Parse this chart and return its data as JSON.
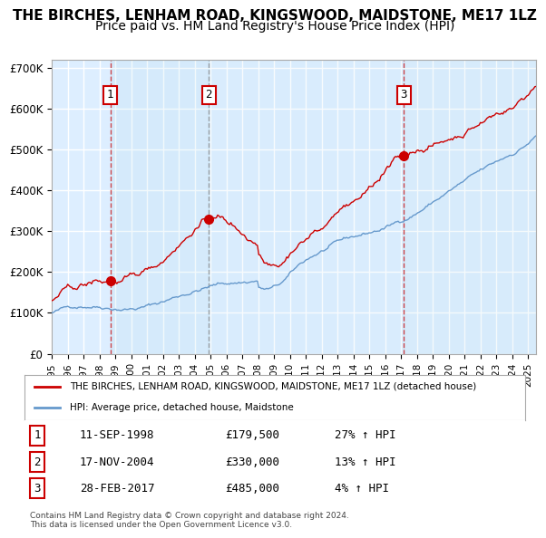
{
  "title": "THE BIRCHES, LENHAM ROAD, KINGSWOOD, MAIDSTONE, ME17 1LZ",
  "subtitle": "Price paid vs. HM Land Registry's House Price Index (HPI)",
  "xlim": [
    1995.0,
    2025.5
  ],
  "ylim": [
    0,
    720000
  ],
  "yticks": [
    0,
    100000,
    200000,
    300000,
    400000,
    500000,
    600000,
    700000
  ],
  "ytick_labels": [
    "£0",
    "£100K",
    "£200K",
    "£300K",
    "£400K",
    "£500K",
    "£600K",
    "£700K"
  ],
  "xtick_years": [
    1995,
    1996,
    1997,
    1998,
    1999,
    2000,
    2001,
    2002,
    2003,
    2004,
    2005,
    2006,
    2007,
    2008,
    2009,
    2010,
    2011,
    2012,
    2013,
    2014,
    2015,
    2016,
    2017,
    2018,
    2019,
    2020,
    2021,
    2022,
    2023,
    2024,
    2025
  ],
  "sale_dates": [
    1998.69,
    2004.88,
    2017.16
  ],
  "sale_prices": [
    179500,
    330000,
    485000
  ],
  "sale_labels": [
    "1",
    "2",
    "3"
  ],
  "sale_date_str": [
    "11-SEP-1998",
    "17-NOV-2004",
    "28-FEB-2017"
  ],
  "sale_price_str": [
    "£179,500",
    "£330,000",
    "£485,000"
  ],
  "sale_hpi_str": [
    "27% ↑ HPI",
    "13% ↑ HPI",
    "4% ↑ HPI"
  ],
  "legend_line1": "THE BIRCHES, LENHAM ROAD, KINGSWOOD, MAIDSTONE, ME17 1LZ (detached house)",
  "legend_line2": "HPI: Average price, detached house, Maidstone",
  "footnote": "Contains HM Land Registry data © Crown copyright and database right 2024.\nThis data is licensed under the Open Government Licence v3.0.",
  "red_color": "#cc0000",
  "blue_color": "#6699cc",
  "bg_color": "#ddeeff",
  "grid_color": "#ffffff",
  "title_fontsize": 11,
  "subtitle_fontsize": 10
}
